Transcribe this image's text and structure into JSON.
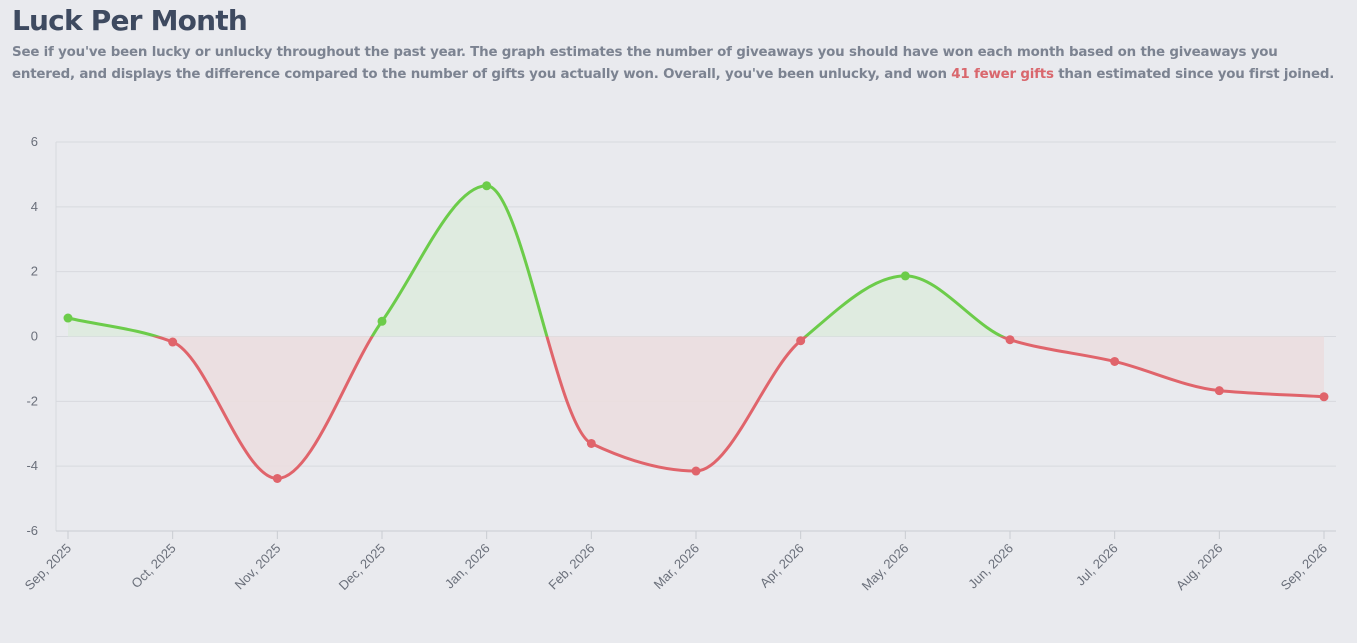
{
  "header": {
    "title": "Luck Per Month",
    "description_before": "See if you've been lucky or unlucky throughout the past year. The graph estimates the number of giveaways you should have won each month based on the giveaways you entered, and displays the difference compared to the number of gifts you actually won. Overall, you've been unlucky, and won ",
    "description_highlight": "41 fewer gifts",
    "description_after": " than estimated since you first joined."
  },
  "colors": {
    "positive": "#6ccc4a",
    "negative": "#e0646b",
    "positive_fill": "#dcebdc",
    "negative_fill": "#ebdedf",
    "grid": "#d7d9de",
    "highlight": "#d9676d"
  },
  "chart_data": {
    "type": "area",
    "title": "",
    "xlabel": "",
    "ylabel": "",
    "ylim": [
      -6,
      6
    ],
    "yticks": [
      6,
      4,
      2,
      0,
      -2,
      -4,
      -6
    ],
    "categories": [
      "Sep, 2025",
      "Oct, 2025",
      "Nov, 2025",
      "Dec, 2025",
      "Jan, 2026",
      "Feb, 2026",
      "Mar, 2026",
      "Apr, 2026",
      "May, 2026",
      "Jun, 2026",
      "Jul, 2026",
      "Aug, 2026",
      "Sep, 2026"
    ],
    "values": [
      0.57,
      -0.17,
      -4.38,
      0.47,
      4.65,
      -3.3,
      -4.15,
      -0.13,
      1.87,
      -0.1,
      -0.77,
      -1.67,
      -1.86
    ],
    "grid": true,
    "legend": "none",
    "coloring": "green above zero, red below zero"
  }
}
